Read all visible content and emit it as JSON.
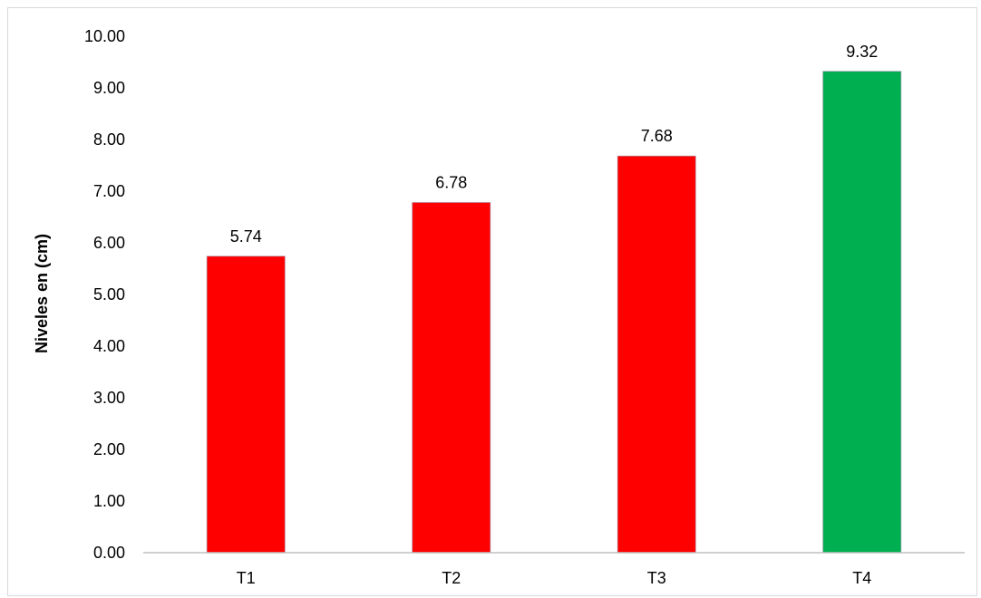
{
  "chart_data": {
    "type": "bar",
    "categories": [
      "T1",
      "T2",
      "T3",
      "T4"
    ],
    "values": [
      5.74,
      6.78,
      7.68,
      9.32
    ],
    "data_labels": [
      "5.74",
      "6.78",
      "7.68",
      "9.32"
    ],
    "bar_colors": [
      "#ff0000",
      "#ff0000",
      "#ff0000",
      "#00b050"
    ],
    "ylabel": "Niveles en (cm)",
    "xlabel": "",
    "ylim": [
      0,
      10
    ],
    "yticks": [
      "0.00",
      "1.00",
      "2.00",
      "3.00",
      "4.00",
      "5.00",
      "6.00",
      "7.00",
      "8.00",
      "9.00",
      "10.00"
    ],
    "grid": false,
    "legend": "none"
  }
}
